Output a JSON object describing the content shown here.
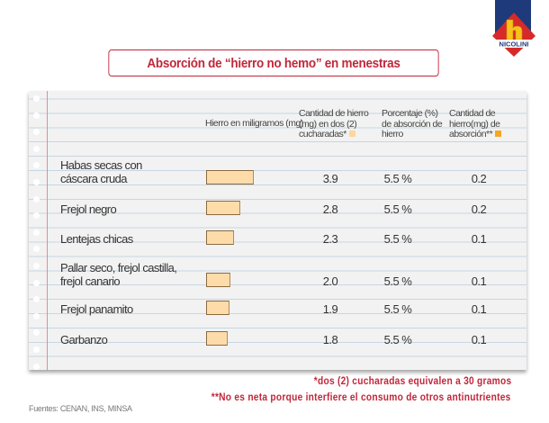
{
  "title": "Absorción de “hierro no hemo” en menestras",
  "logo_text": "NICOLINI",
  "colors": {
    "accent": "#c0273a",
    "bar": "#fddcaa",
    "swatch_light": "#fdd89a",
    "swatch_dark": "#f5a623"
  },
  "chart_data": {
    "type": "table",
    "title": "Absorción de “hierro no hemo” en menestras",
    "headers": {
      "name": "",
      "bar": "Hierro en miligramos (mg)",
      "c1": "Cantidad de hierro (mg) en dos (2) cucharadas*",
      "c2": "Porcentaje (%) de absorción de hierro",
      "c3": "Cantidad de hierro(mg) de absorción**"
    },
    "rows": [
      {
        "name": "Habas secas con cáscara cruda",
        "iron": "3.9",
        "value": 3.9,
        "pct": "5.5 %",
        "abs": "0.2"
      },
      {
        "name": "Frejol negro",
        "iron": "2.8",
        "value": 2.8,
        "pct": "5.5 %",
        "abs": "0.2"
      },
      {
        "name": "Lentejas chicas",
        "iron": "2.3",
        "value": 2.3,
        "pct": "5.5 %",
        "abs": "0.1"
      },
      {
        "name": "Pallar seco, frejol castilla, frejol canario",
        "iron": "2.0",
        "value": 2.0,
        "pct": "5.5 %",
        "abs": "0.1"
      },
      {
        "name": "Frejol panamito",
        "iron": "1.9",
        "value": 1.9,
        "pct": "5.5 %",
        "abs": "0.1"
      },
      {
        "name": "Garbanzo",
        "iron": "1.8",
        "value": 1.8,
        "pct": "5.5 %",
        "abs": "0.1"
      }
    ]
  },
  "footnotes": [
    "*dos (2) cucharadas equivalen a 30 gramos",
    "**No es neta porque interfiere el consumo de otros antinutrientes"
  ],
  "source": "Fuentes: CENAN, INS, MINSA"
}
